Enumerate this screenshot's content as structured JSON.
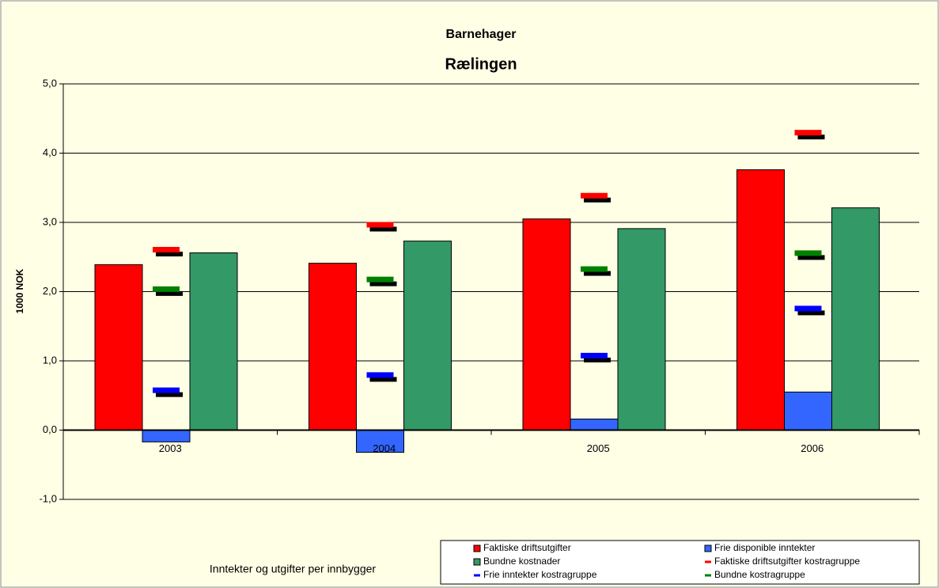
{
  "chart_data": {
    "type": "bar",
    "title": "Barnehager",
    "subtitle": "Rælingen",
    "ylabel": "1000 NOK",
    "xlabel": "Inntekter og utgifter per innbygger",
    "categories": [
      "2003",
      "2004",
      "2005",
      "2006"
    ],
    "ylim": [
      -1,
      5
    ],
    "yticks": [
      {
        "value": -1,
        "label": "-1,0"
      },
      {
        "value": 0,
        "label": "0,0"
      },
      {
        "value": 1,
        "label": "1,0"
      },
      {
        "value": 2,
        "label": "2,0"
      },
      {
        "value": 3,
        "label": "3,0"
      },
      {
        "value": 4,
        "label": "4,0"
      },
      {
        "value": 5,
        "label": "5,0"
      }
    ],
    "grid": true,
    "legend": "bottom-right",
    "series": [
      {
        "name": "Faktiske driftsutgifter",
        "type": "bar",
        "color": "#ff0000",
        "values": [
          2.39,
          2.41,
          3.05,
          3.76
        ]
      },
      {
        "name": "Frie disponible inntekter",
        "type": "bar",
        "color": "#3366ff",
        "values": [
          -0.17,
          -0.32,
          0.16,
          0.55
        ]
      },
      {
        "name": "Bundne kostnader",
        "type": "bar",
        "color": "#339966",
        "values": [
          2.56,
          2.73,
          2.91,
          3.21
        ]
      },
      {
        "name": "Faktiske driftsutgifter kostragruppe",
        "type": "marker",
        "color": "#ff0000",
        "values": [
          2.6,
          2.96,
          3.38,
          4.29
        ]
      },
      {
        "name": "Frie inntekter kostragruppe",
        "type": "marker",
        "color": "#0000ff",
        "values": [
          0.57,
          0.79,
          1.07,
          1.75
        ]
      },
      {
        "name": "Bundne kostragruppe",
        "type": "marker",
        "color": "#008000",
        "values": [
          2.03,
          2.17,
          2.32,
          2.55
        ]
      }
    ]
  }
}
